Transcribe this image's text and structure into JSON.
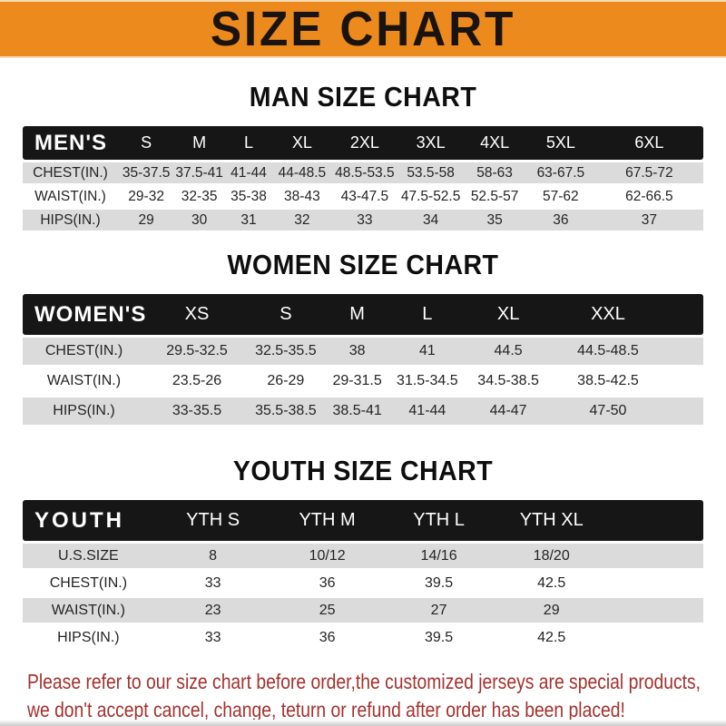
{
  "banner": {
    "title": "SIZE CHART",
    "bg_color": "#ED8A1E",
    "text_color": "#1a1410"
  },
  "sections": [
    {
      "heading": "MAN SIZE CHART",
      "table": {
        "header_label": "MEN'S",
        "columns": [
          "S",
          "M",
          "L",
          "XL",
          "2XL",
          "3XL",
          "4XL",
          "5XL",
          "6XL"
        ],
        "rows": [
          {
            "label": "CHEST(IN.)",
            "values": [
              "35-37.5",
              "37.5-41",
              "41-44",
              "44-48.5",
              "48.5-53.5",
              "53.5-58",
              "58-63",
              "63-67.5",
              "67.5-72"
            ]
          },
          {
            "label": "WAIST(IN.)",
            "values": [
              "29-32",
              "32-35",
              "35-38",
              "38-43",
              "43-47.5",
              "47.5-52.5",
              "52.5-57",
              "57-62",
              "62-66.5"
            ]
          },
          {
            "label": "HIPS(IN.)",
            "values": [
              "29",
              "30",
              "31",
              "32",
              "33",
              "34",
              "35",
              "36",
              "37"
            ]
          }
        ]
      }
    },
    {
      "heading": "WOMEN SIZE CHART",
      "table": {
        "header_label": "WOMEN'S",
        "columns": [
          "XS",
          "S",
          "M",
          "L",
          "XL",
          "XXL"
        ],
        "rows": [
          {
            "label": "CHEST(IN.)",
            "values": [
              "29.5-32.5",
              "32.5-35.5",
              "38",
              "41",
              "44.5",
              "44.5-48.5"
            ]
          },
          {
            "label": "WAIST(IN.)",
            "values": [
              "23.5-26",
              "26-29",
              "29-31.5",
              "31.5-34.5",
              "34.5-38.5",
              "38.5-42.5"
            ]
          },
          {
            "label": "HIPS(IN.)",
            "values": [
              "33-35.5",
              "35.5-38.5",
              "38.5-41",
              "41-44",
              "44-47",
              "47-50"
            ]
          }
        ]
      }
    },
    {
      "heading": "YOUTH SIZE CHART",
      "table": {
        "header_label": "YOUTH",
        "columns": [
          "YTH S",
          "YTH M",
          "YTH L",
          "YTH XL"
        ],
        "rows": [
          {
            "label": "U.S.SIZE",
            "values": [
              "8",
              "10/12",
              "14/16",
              "18/20"
            ]
          },
          {
            "label": "CHEST(IN.)",
            "values": [
              "33",
              "36",
              "39.5",
              "42.5"
            ]
          },
          {
            "label": "WAIST(IN.)",
            "values": [
              "23",
              "25",
              "27",
              "29"
            ]
          },
          {
            "label": "HIPS(IN.)",
            "values": [
              "33",
              "36",
              "39.5",
              "42.5"
            ]
          }
        ]
      }
    }
  ],
  "footer": {
    "line1": "Please refer to our size chart before order,the customized jerseys are special products,",
    "line2": "we don't accept cancel, change, teturn or refund after order has been placed!",
    "text_color": "#A3322E"
  }
}
